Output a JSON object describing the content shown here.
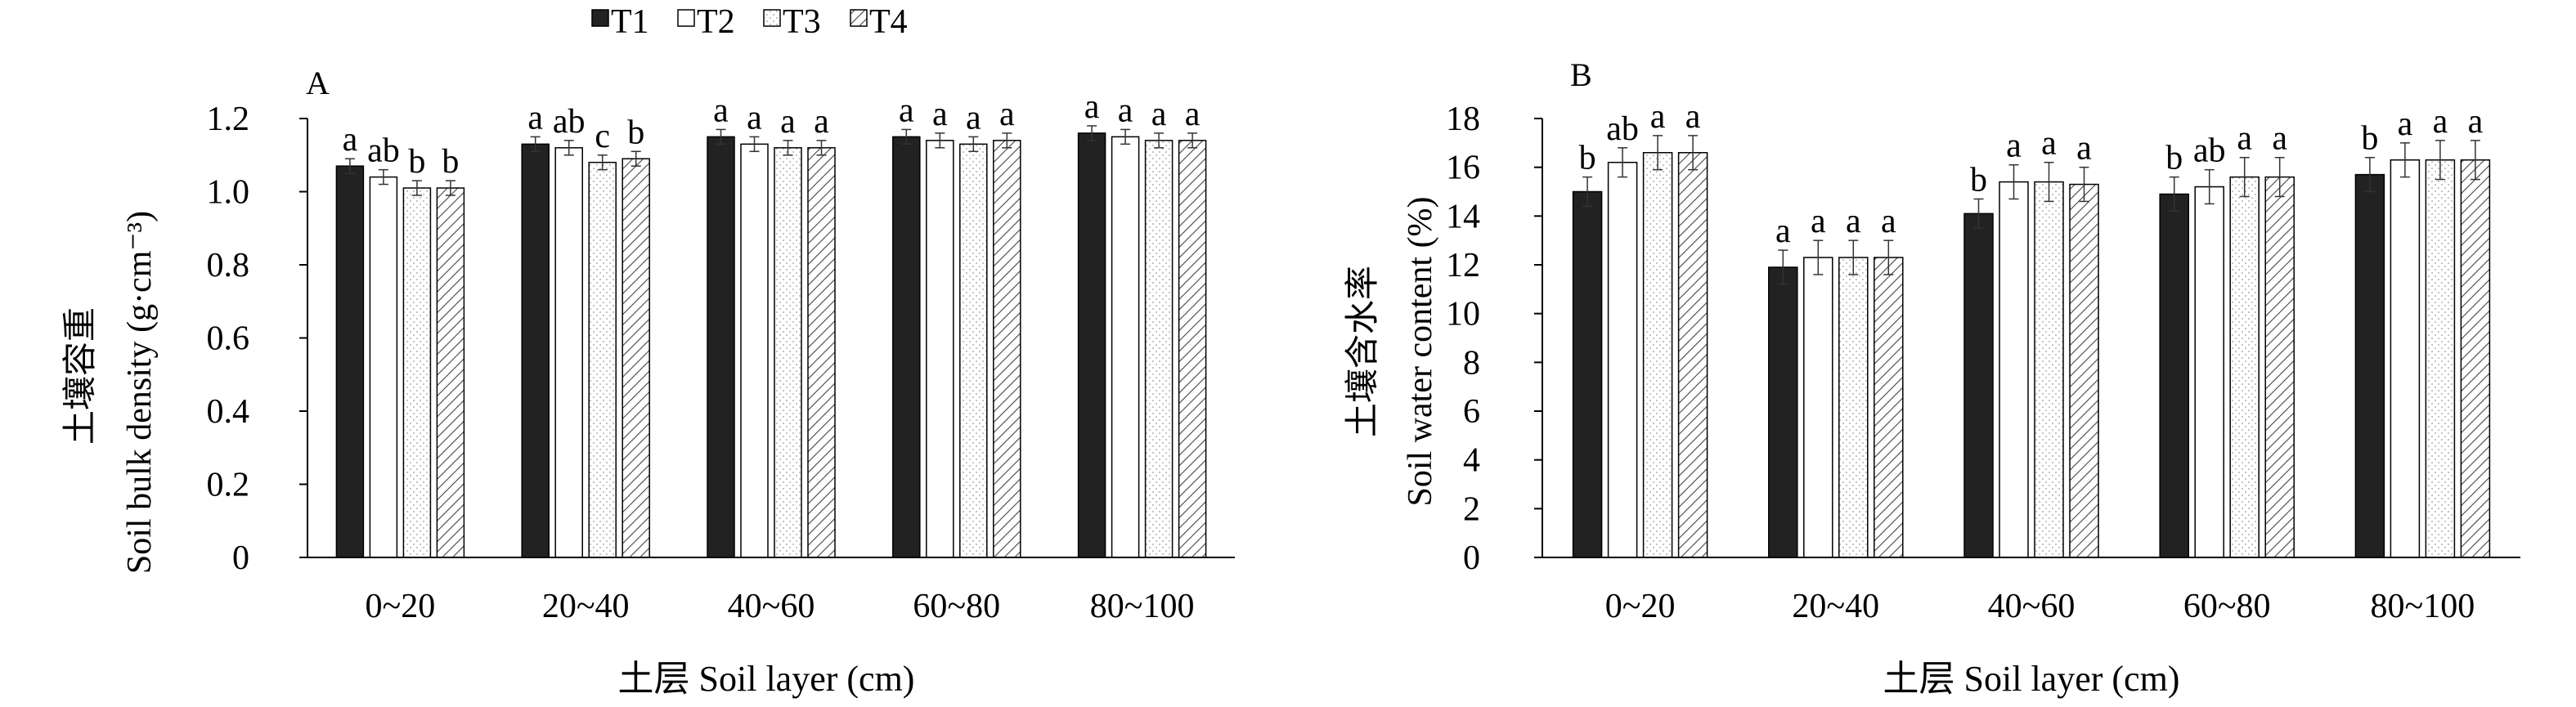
{
  "legend": [
    {
      "name": "T1",
      "pattern": "solid"
    },
    {
      "name": "T2",
      "pattern": "open"
    },
    {
      "name": "T3",
      "pattern": "dots"
    },
    {
      "name": "T4",
      "pattern": "hatch"
    }
  ],
  "colors": {
    "ink": "#000000",
    "bar_solid": "#222222",
    "hatch": "#444444",
    "dots": "#9a9a9a",
    "error_bar": "#333333"
  },
  "chart_data": [
    {
      "type": "bar",
      "panel": "A",
      "ylabel_cn": "土壤容重",
      "ylabel": "Soil bulk density (g·cm⁻³)",
      "xlabel": "土层 Soil layer (cm)",
      "categories": [
        "0~20",
        "20~40",
        "40~60",
        "60~80",
        "80~100"
      ],
      "ylim": [
        0,
        1.2
      ],
      "yticks": [
        0,
        0.2,
        0.4,
        0.6,
        0.8,
        1.0,
        1.2
      ],
      "ytick_labels": [
        "0",
        "0.2",
        "0.4",
        "0.6",
        "0.8",
        "1.0",
        "1.2"
      ],
      "series": [
        {
          "name": "T1",
          "values": [
            1.07,
            1.13,
            1.15,
            1.15,
            1.16
          ],
          "errors": [
            0.02,
            0.02,
            0.02,
            0.02,
            0.02
          ],
          "letters": [
            "a",
            "a",
            "a",
            "a",
            "a"
          ]
        },
        {
          "name": "T2",
          "values": [
            1.04,
            1.12,
            1.13,
            1.14,
            1.15
          ],
          "errors": [
            0.02,
            0.02,
            0.02,
            0.02,
            0.02
          ],
          "letters": [
            "ab",
            "ab",
            "a",
            "a",
            "a"
          ]
        },
        {
          "name": "T3",
          "values": [
            1.01,
            1.08,
            1.12,
            1.13,
            1.14
          ],
          "errors": [
            0.02,
            0.02,
            0.02,
            0.02,
            0.02
          ],
          "letters": [
            "b",
            "c",
            "a",
            "a",
            "a"
          ]
        },
        {
          "name": "T4",
          "values": [
            1.01,
            1.09,
            1.12,
            1.14,
            1.14
          ],
          "errors": [
            0.02,
            0.02,
            0.02,
            0.02,
            0.02
          ],
          "letters": [
            "b",
            "b",
            "a",
            "a",
            "a"
          ]
        }
      ]
    },
    {
      "type": "bar",
      "panel": "B",
      "ylabel_cn": "土壤含水率",
      "ylabel": "Soil water content (%)",
      "xlabel": "土层 Soil layer (cm)",
      "categories": [
        "0~20",
        "20~40",
        "40~60",
        "60~80",
        "80~100"
      ],
      "ylim": [
        0,
        18
      ],
      "yticks": [
        0,
        2,
        4,
        6,
        8,
        10,
        12,
        14,
        16,
        18
      ],
      "ytick_labels": [
        "0",
        "2",
        "4",
        "6",
        "8",
        "10",
        "12",
        "14",
        "16",
        "18"
      ],
      "series": [
        {
          "name": "T1",
          "values": [
            15.0,
            11.9,
            14.1,
            14.9,
            15.7
          ],
          "errors": [
            0.6,
            0.7,
            0.6,
            0.7,
            0.7
          ],
          "letters": [
            "b",
            "a",
            "b",
            "b",
            "b"
          ]
        },
        {
          "name": "T2",
          "values": [
            16.2,
            12.3,
            15.4,
            15.2,
            16.3
          ],
          "errors": [
            0.6,
            0.7,
            0.7,
            0.7,
            0.7
          ],
          "letters": [
            "ab",
            "a",
            "a",
            "ab",
            "a"
          ]
        },
        {
          "name": "T3",
          "values": [
            16.6,
            12.3,
            15.4,
            15.6,
            16.3
          ],
          "errors": [
            0.7,
            0.7,
            0.8,
            0.8,
            0.8
          ],
          "letters": [
            "a",
            "a",
            "a",
            "a",
            "a"
          ]
        },
        {
          "name": "T4",
          "values": [
            16.6,
            12.3,
            15.3,
            15.6,
            16.3
          ],
          "errors": [
            0.7,
            0.7,
            0.7,
            0.8,
            0.8
          ],
          "letters": [
            "a",
            "a",
            "a",
            "a",
            "a"
          ]
        }
      ]
    }
  ]
}
